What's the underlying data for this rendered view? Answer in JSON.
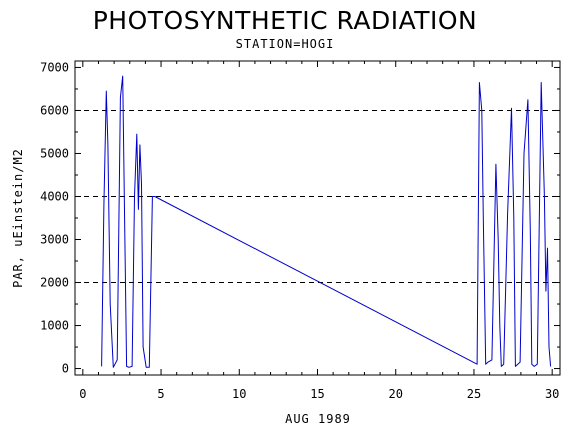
{
  "chart_data": {
    "type": "line",
    "title": "PHOTOSYNTHETIC RADIATION",
    "subtitle": "STATION=HOGI",
    "xlabel": "AUG 1989",
    "ylabel": "PAR, uEinstein/M2",
    "xlim": [
      -0.5,
      30.5
    ],
    "ylim": [
      -150,
      7150
    ],
    "x_ticks": [
      0,
      5,
      10,
      15,
      20,
      25,
      30
    ],
    "y_ticks": [
      0,
      1000,
      2000,
      3000,
      4000,
      5000,
      6000,
      7000
    ],
    "reference_lines": [
      2000,
      4000,
      6000
    ],
    "grid": false,
    "line_color": "#0000cc",
    "series": [
      {
        "x": [
          1.2,
          1.35,
          1.5,
          1.6,
          1.75,
          1.95,
          2.2,
          2.4,
          2.55,
          2.65,
          2.8,
          2.95,
          3.15,
          3.3,
          3.45,
          3.55,
          3.65,
          3.75,
          3.85,
          4.05,
          4.25,
          4.45,
          4.6,
          25.2,
          25.35,
          25.5,
          25.6,
          25.75,
          25.9,
          26.15,
          26.4,
          26.55,
          26.65,
          26.75,
          26.9,
          27.15,
          27.4,
          27.55,
          27.65,
          27.8,
          27.95,
          28.2,
          28.45,
          28.6,
          28.7,
          28.85,
          29.05,
          29.3,
          29.5,
          29.6,
          29.7,
          29.8,
          29.9
        ],
        "y": [
          50,
          3800,
          6450,
          5200,
          1500,
          30,
          200,
          6300,
          6800,
          4000,
          50,
          30,
          50,
          4000,
          5450,
          3700,
          5200,
          4300,
          500,
          30,
          30,
          4000,
          4000,
          100,
          6650,
          6000,
          3500,
          100,
          150,
          200,
          4750,
          3000,
          1000,
          50,
          100,
          3600,
          6050,
          3500,
          50,
          100,
          150,
          5000,
          6250,
          3200,
          100,
          50,
          100,
          6650,
          4000,
          1800,
          2800,
          500,
          50
        ]
      }
    ]
  }
}
